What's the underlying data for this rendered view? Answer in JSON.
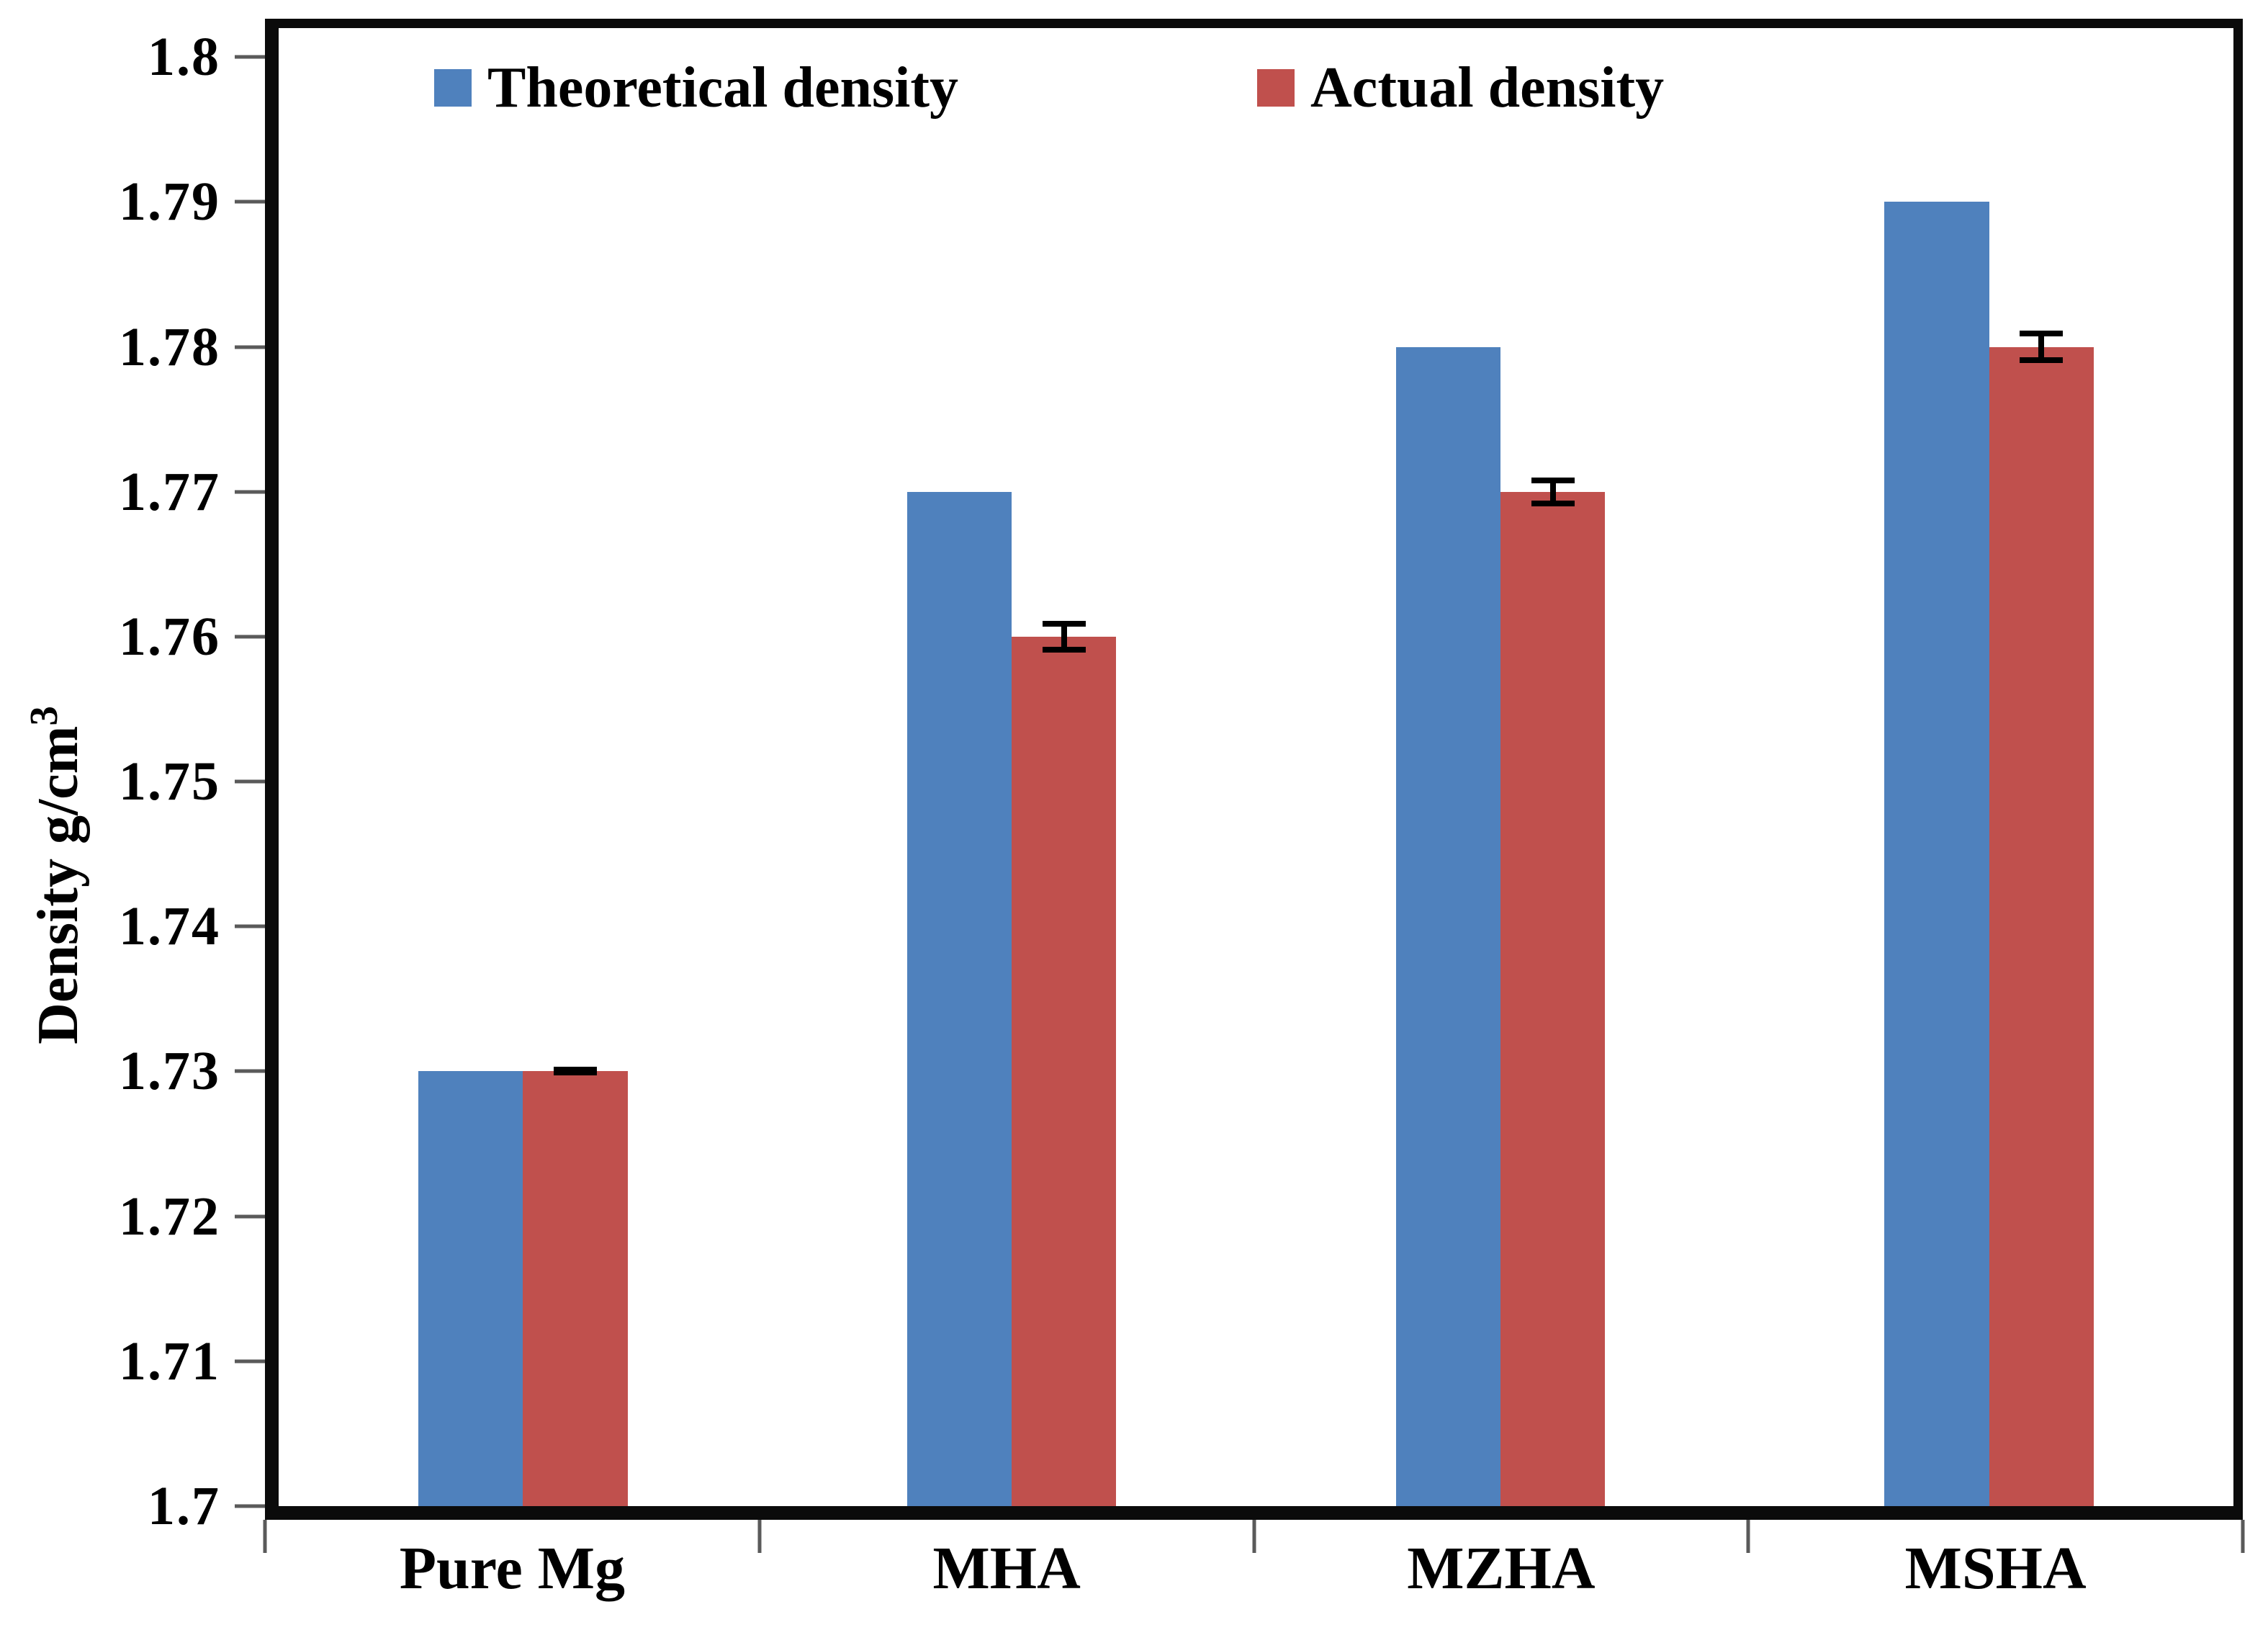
{
  "chart_data": {
    "type": "bar",
    "title": "",
    "ylabel_base": "Density g/cm",
    "ylabel_sup": "3",
    "categories": [
      "Pure Mg",
      "MHA",
      "MZHA",
      "MSHA"
    ],
    "series": [
      {
        "name": "Theoretical density",
        "color": "#4F81BD",
        "values": [
          1.73,
          1.77,
          1.78,
          1.79
        ]
      },
      {
        "name": "Actual density",
        "color": "#C0504D",
        "values": [
          1.73,
          1.76,
          1.77,
          1.78
        ],
        "error_bars": [
          0.0003,
          0.0011,
          0.001,
          0.0011
        ]
      }
    ],
    "ytick_labels": [
      "1.7",
      "1.71",
      "1.72",
      "1.73",
      "1.74",
      "1.75",
      "1.76",
      "1.77",
      "1.78",
      "1.79",
      "1.8"
    ],
    "yticks": [
      1.7,
      1.71,
      1.72,
      1.73,
      1.74,
      1.75,
      1.76,
      1.77,
      1.78,
      1.79,
      1.8
    ],
    "ylim": [
      1.7,
      1.802
    ],
    "grid": false,
    "legend_position": "top-inside",
    "axis_color": "#0b0b0b",
    "tick_color": "#5a5a5a"
  }
}
